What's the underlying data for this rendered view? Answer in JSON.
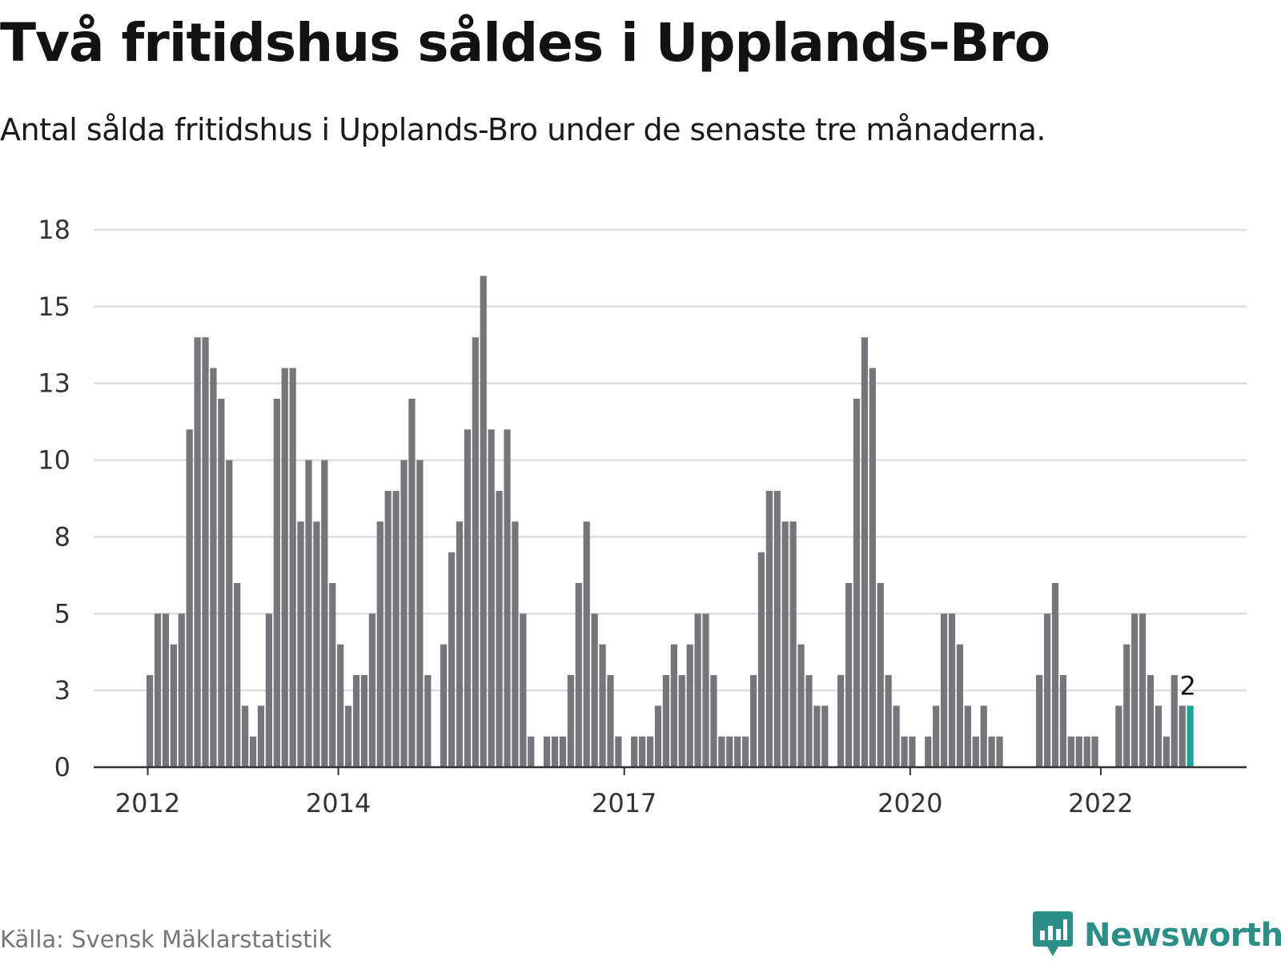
{
  "header": {
    "title": "Två fritidshus såldes i Upplands-Bro",
    "subtitle": "Antal sålda fritidshus i Upplands-Bro under de senaste tre månaderna."
  },
  "footer": {
    "source": "Källa: Svensk Mäklarstatistik",
    "brand": "Newsworthy",
    "brand_icon": "bar-chart-speech-bubble-icon"
  },
  "colors": {
    "bar": "#75757a",
    "highlight": "#1ba39a",
    "grid": "#dddddd",
    "axis": "#333333",
    "brand": "#2b8f88"
  },
  "chart_data": {
    "type": "bar",
    "title": "Två fritidshus såldes i Upplands-Bro",
    "subtitle": "Antal sålda fritidshus i Upplands-Bro under de senaste tre månaderna.",
    "xlabel": "",
    "ylabel": "",
    "ylim": [
      0,
      17.5
    ],
    "y_ticks": [
      0,
      2.5,
      5,
      7.5,
      10,
      12.5,
      15,
      17.5
    ],
    "y_tick_labels": [
      "0",
      "3",
      "5",
      "8",
      "10",
      "13",
      "15",
      "18"
    ],
    "x_tick_labels": [
      {
        "label": "2012",
        "index": 0
      },
      {
        "label": "2014",
        "index": 24
      },
      {
        "label": "2017",
        "index": 60
      },
      {
        "label": "2020",
        "index": 96
      },
      {
        "label": "2022",
        "index": 120
      }
    ],
    "grid": "horizontal",
    "highlight": {
      "index": 131,
      "label": "2"
    },
    "values": [
      3,
      5,
      5,
      4,
      5,
      11,
      14,
      14,
      13,
      12,
      10,
      6,
      2,
      1,
      2,
      5,
      12,
      13,
      13,
      8,
      10,
      8,
      10,
      6,
      4,
      2,
      3,
      3,
      5,
      8,
      9,
      9,
      10,
      12,
      10,
      3,
      0,
      4,
      7,
      8,
      11,
      14,
      16,
      11,
      9,
      11,
      8,
      5,
      1,
      0,
      1,
      1,
      1,
      3,
      6,
      8,
      5,
      4,
      3,
      1,
      0,
      1,
      1,
      1,
      2,
      3,
      4,
      3,
      4,
      5,
      5,
      3,
      1,
      1,
      1,
      1,
      3,
      7,
      9,
      9,
      8,
      8,
      4,
      3,
      2,
      2,
      0,
      3,
      6,
      12,
      14,
      13,
      6,
      3,
      2,
      1,
      1,
      0,
      1,
      2,
      5,
      5,
      4,
      2,
      1,
      2,
      1,
      1,
      0,
      0,
      0,
      0,
      3,
      5,
      6,
      3,
      1,
      1,
      1,
      1,
      0,
      0,
      2,
      4,
      5,
      5,
      3,
      2,
      1,
      3,
      2,
      2
    ]
  }
}
